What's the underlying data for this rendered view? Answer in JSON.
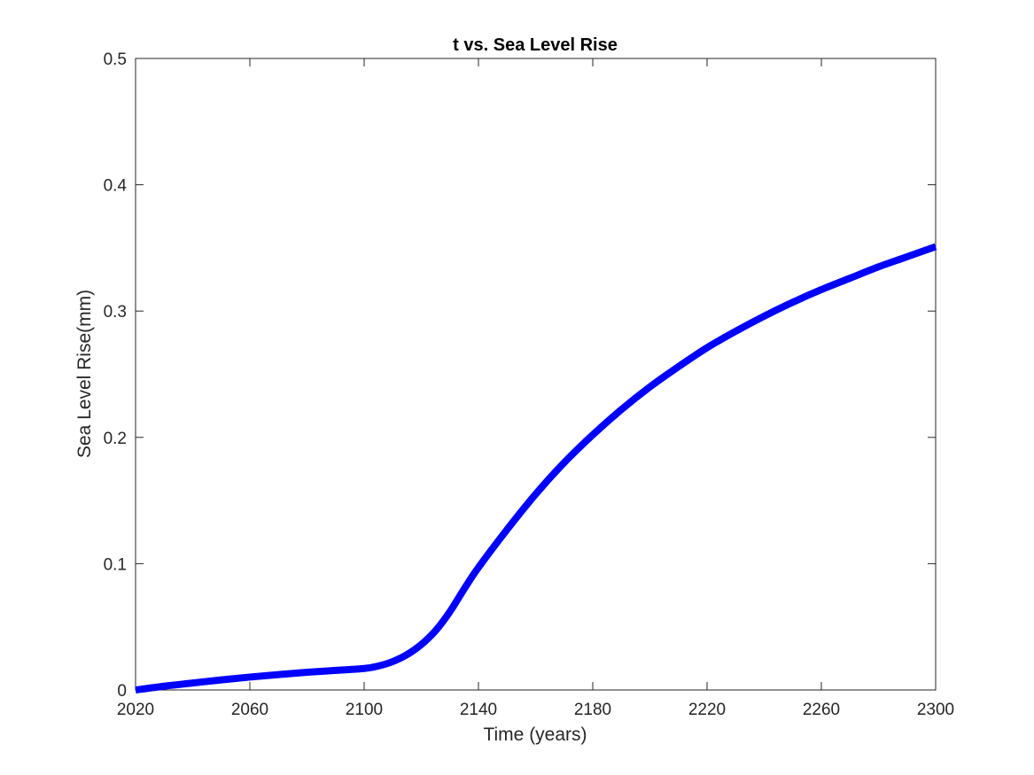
{
  "chart_data": {
    "type": "line",
    "title": "t vs. Sea Level Rise",
    "xlabel": "Time (years)",
    "ylabel": "Sea Level Rise(mm)",
    "xlim": [
      2020,
      2300
    ],
    "ylim": [
      0,
      0.5
    ],
    "xticks": [
      2020,
      2060,
      2100,
      2140,
      2180,
      2220,
      2260,
      2300
    ],
    "yticks": [
      0,
      0.1,
      0.2,
      0.3,
      0.4,
      0.5
    ],
    "ytick_labels": [
      "0",
      "0.1",
      "0.2",
      "0.3",
      "0.4",
      "0.5"
    ],
    "grid": false,
    "series": [
      {
        "color": "#0000ff",
        "x": [
          2020,
          2030,
          2040,
          2050,
          2060,
          2070,
          2080,
          2090,
          2100,
          2105,
          2110,
          2115,
          2120,
          2125,
          2130,
          2135,
          2140,
          2150,
          2160,
          2170,
          2180,
          2190,
          2200,
          2210,
          2220,
          2230,
          2240,
          2250,
          2260,
          2270,
          2280,
          2290,
          2300
        ],
        "y": [
          0,
          0.003,
          0.0055,
          0.008,
          0.0102,
          0.0122,
          0.014,
          0.0155,
          0.017,
          0.019,
          0.0225,
          0.028,
          0.036,
          0.047,
          0.062,
          0.08,
          0.097,
          0.127,
          0.155,
          0.18,
          0.202,
          0.222,
          0.24,
          0.256,
          0.271,
          0.284,
          0.296,
          0.307,
          0.317,
          0.326,
          0.335,
          0.343,
          0.351
        ]
      }
    ]
  }
}
